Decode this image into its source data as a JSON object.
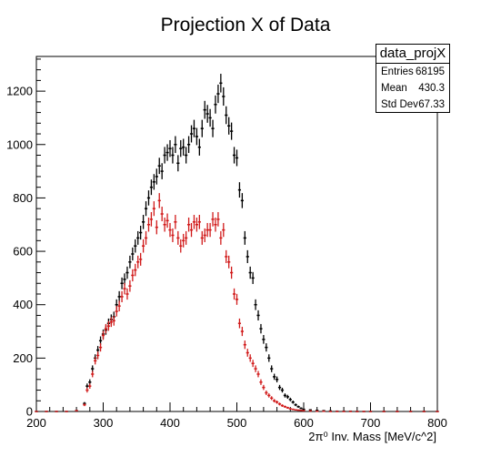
{
  "chart_data": {
    "type": "scatter",
    "title": "Projection X of Data",
    "xlabel": "2π⁰ Inv. Mass [MeV/c^2]",
    "ylabel": "",
    "xlim": [
      200,
      800
    ],
    "ylim": [
      0,
      1330
    ],
    "x_ticks": [
      200,
      300,
      400,
      500,
      600,
      700,
      800
    ],
    "y_ticks": [
      0,
      200,
      400,
      600,
      800,
      1000,
      1200
    ],
    "grid": false,
    "stats_box": {
      "title": "data_projX",
      "entries_label": "Entries",
      "entries": "68195",
      "mean_label": "Mean",
      "mean": "430.3",
      "stddev_label": "Std Dev",
      "stddev": "67.33"
    },
    "series": [
      {
        "color": "#000000",
        "x": [
          200,
          215,
          230,
          245,
          260,
          272,
          276,
          280,
          284,
          288,
          292,
          296,
          300,
          304,
          308,
          312,
          316,
          320,
          324,
          328,
          332,
          336,
          340,
          344,
          348,
          352,
          356,
          360,
          364,
          368,
          372,
          376,
          380,
          384,
          388,
          392,
          396,
          400,
          404,
          408,
          412,
          416,
          420,
          424,
          428,
          432,
          436,
          440,
          444,
          448,
          452,
          456,
          460,
          464,
          468,
          472,
          476,
          480,
          484,
          488,
          492,
          496,
          500,
          504,
          508,
          512,
          516,
          520,
          524,
          528,
          532,
          536,
          540,
          544,
          548,
          552,
          556,
          560,
          564,
          568,
          572,
          576,
          580,
          584,
          588,
          592,
          596,
          600,
          610,
          620,
          630,
          640,
          650,
          660,
          670,
          680,
          690,
          700,
          720,
          740,
          760,
          780,
          800
        ],
        "y": [
          0,
          0,
          0,
          0,
          3,
          30,
          95,
          110,
          160,
          200,
          230,
          265,
          290,
          305,
          330,
          345,
          355,
          400,
          430,
          480,
          495,
          520,
          560,
          590,
          620,
          650,
          670,
          710,
          760,
          800,
          840,
          860,
          880,
          920,
          900,
          960,
          970,
          985,
          960,
          1000,
          930,
          985,
          990,
          960,
          1000,
          1040,
          1060,
          1030,
          990,
          1060,
          1130,
          1115,
          1100,
          1060,
          1150,
          1190,
          1230,
          1180,
          1110,
          1070,
          1050,
          960,
          950,
          830,
          790,
          650,
          580,
          520,
          500,
          400,
          360,
          310,
          270,
          240,
          200,
          160,
          130,
          120,
          90,
          80,
          60,
          55,
          45,
          35,
          25,
          18,
          12,
          8,
          6,
          4,
          3,
          2,
          1,
          1,
          1,
          0,
          0,
          0,
          0,
          0,
          0,
          0,
          0
        ]
      },
      {
        "color": "#d11a1a",
        "x": [
          200,
          215,
          230,
          245,
          260,
          272,
          276,
          280,
          284,
          288,
          292,
          296,
          300,
          304,
          308,
          312,
          316,
          320,
          324,
          328,
          332,
          336,
          340,
          344,
          348,
          352,
          356,
          360,
          364,
          368,
          372,
          376,
          380,
          384,
          388,
          392,
          396,
          400,
          404,
          408,
          412,
          416,
          420,
          424,
          428,
          432,
          436,
          440,
          444,
          448,
          452,
          456,
          460,
          464,
          468,
          472,
          476,
          480,
          484,
          488,
          492,
          496,
          500,
          504,
          508,
          512,
          516,
          520,
          524,
          528,
          532,
          536,
          540,
          544,
          548,
          552,
          556,
          560,
          564,
          568,
          572,
          576,
          580,
          584,
          588,
          592,
          596,
          600,
          610,
          620,
          630,
          640,
          650,
          660,
          670,
          680,
          690,
          700,
          720,
          740,
          760,
          780,
          800
        ],
        "y": [
          0,
          0,
          0,
          0,
          3,
          25,
          80,
          95,
          140,
          190,
          210,
          240,
          285,
          310,
          320,
          335,
          340,
          375,
          395,
          430,
          460,
          440,
          470,
          510,
          530,
          560,
          570,
          620,
          650,
          700,
          720,
          760,
          690,
          790,
          740,
          700,
          715,
          680,
          660,
          710,
          650,
          620,
          640,
          650,
          700,
          680,
          710,
          700,
          710,
          650,
          660,
          680,
          680,
          720,
          700,
          720,
          650,
          680,
          580,
          560,
          520,
          440,
          420,
          330,
          300,
          250,
          220,
          200,
          180,
          160,
          140,
          110,
          90,
          70,
          60,
          50,
          40,
          35,
          28,
          22,
          18,
          14,
          10,
          8,
          6,
          5,
          4,
          3,
          2,
          1,
          1,
          0,
          0,
          0,
          0,
          0,
          0,
          0,
          0,
          0,
          0,
          0,
          0
        ]
      }
    ]
  }
}
